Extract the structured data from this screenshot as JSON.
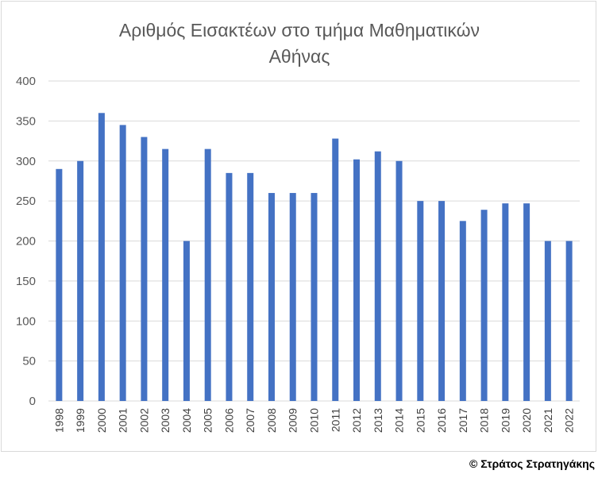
{
  "chart_data": {
    "type": "bar",
    "title_lines": [
      "Αριθμός Εισακτέων στο τμήμα Μαθηματικών",
      "Αθήνας"
    ],
    "categories": [
      "1998",
      "1999",
      "2000",
      "2001",
      "2002",
      "2003",
      "2004",
      "2005",
      "2006",
      "2007",
      "2008",
      "2009",
      "2010",
      "2011",
      "2012",
      "2013",
      "2014",
      "2015",
      "2016",
      "2017",
      "2018",
      "2019",
      "2020",
      "2021",
      "2022"
    ],
    "values": [
      290,
      300,
      360,
      345,
      330,
      315,
      200,
      315,
      285,
      285,
      260,
      260,
      260,
      328,
      302,
      312,
      300,
      250,
      250,
      225,
      239,
      247,
      247,
      200,
      200
    ],
    "ylim": [
      0,
      400
    ],
    "yticks": [
      0,
      50,
      100,
      150,
      200,
      250,
      300,
      350,
      400
    ],
    "grid": true,
    "bar_color": "#4472c4",
    "grid_color": "#d9d9d9"
  },
  "footer": {
    "copyright": "© Στράτος Στρατηγάκης"
  }
}
